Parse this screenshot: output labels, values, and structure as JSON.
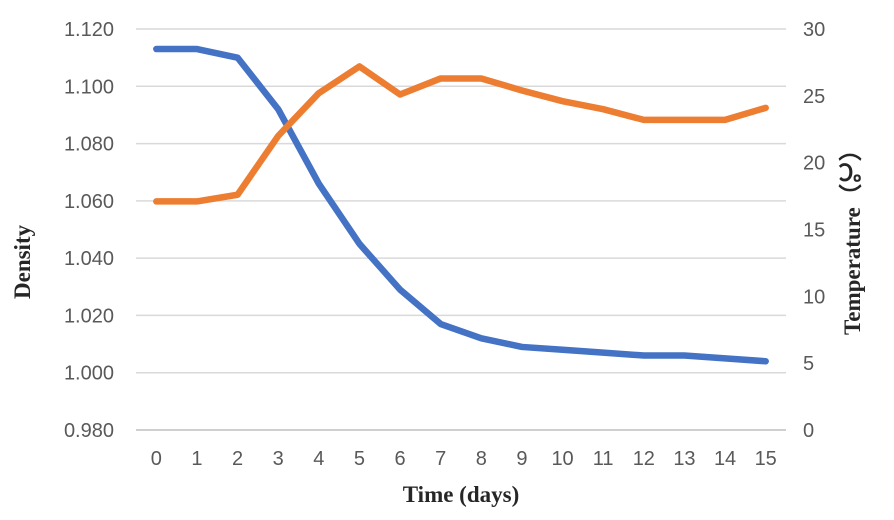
{
  "chart_data": {
    "type": "line",
    "title": "",
    "xlabel": "Time (days)",
    "ylabel_left": "Density",
    "ylabel_right": "Temperature（℃）",
    "x": [
      0,
      1,
      2,
      3,
      4,
      5,
      6,
      7,
      8,
      9,
      10,
      11,
      12,
      13,
      14,
      15
    ],
    "series": [
      {
        "name": "Density",
        "axis": "left",
        "color": "#4472C4",
        "values": [
          1.113,
          1.113,
          1.11,
          1.092,
          1.066,
          1.045,
          1.029,
          1.017,
          1.012,
          1.009,
          1.008,
          1.007,
          1.006,
          1.006,
          1.005,
          1.004
        ]
      },
      {
        "name": "Temperature",
        "axis": "right",
        "color": "#ED7D31",
        "values": [
          17.1,
          17.1,
          17.6,
          22.0,
          25.2,
          27.2,
          25.1,
          26.3,
          26.3,
          25.4,
          24.6,
          24.0,
          23.2,
          23.2,
          23.2,
          24.1
        ]
      }
    ],
    "left_axis": {
      "min": 0.98,
      "max": 1.12,
      "ticks": [
        0.98,
        1.0,
        1.02,
        1.04,
        1.06,
        1.08,
        1.1,
        1.12
      ],
      "decimals": 3
    },
    "right_axis": {
      "min": 0,
      "max": 30,
      "ticks": [
        0,
        5,
        10,
        15,
        20,
        25,
        30
      ],
      "decimals": 0
    },
    "grid": "horizontal",
    "legend": "none"
  },
  "styles": {
    "background": "#FFFFFF",
    "grid_color": "#D9D9D9",
    "axis_line_color": "#BFBFBF",
    "tick_label_color": "#595959",
    "title_color": "#262626",
    "line_width": 6.5
  }
}
